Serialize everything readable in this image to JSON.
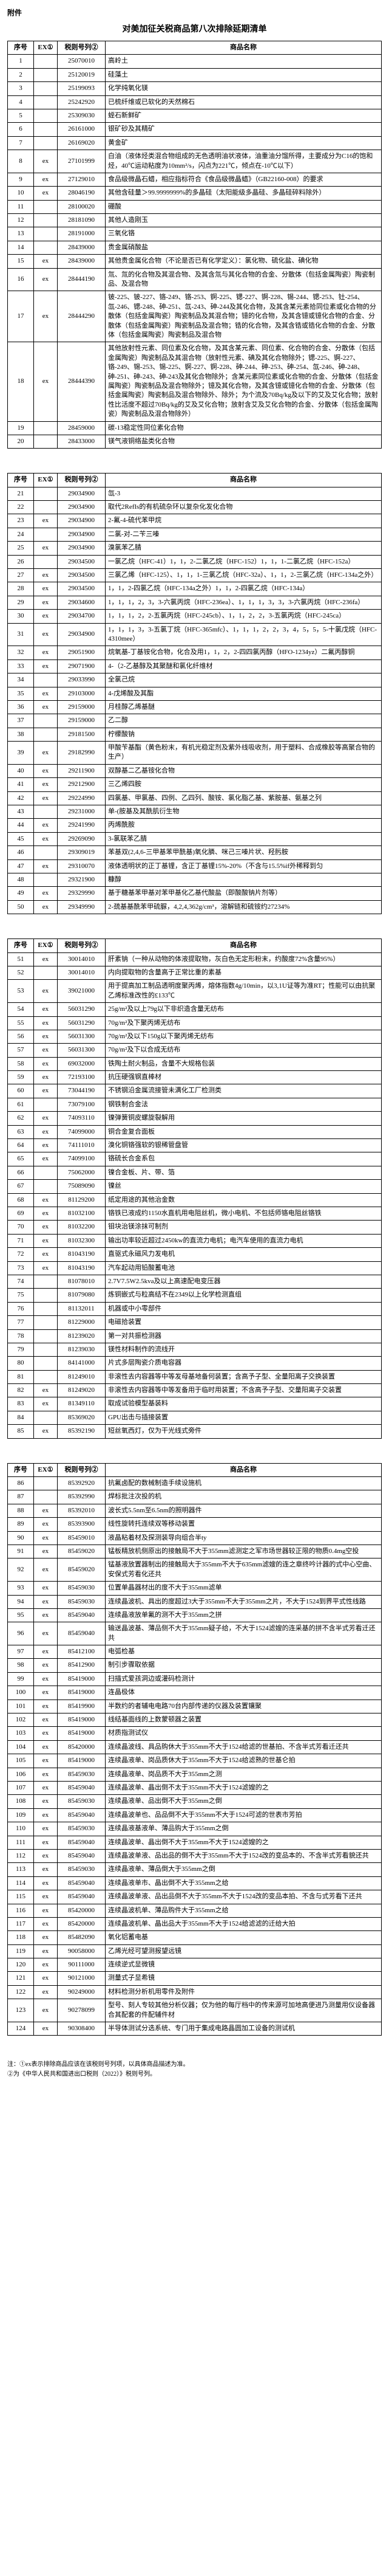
{
  "attachment_label": "附件",
  "main_title": "对美加征关税商品第八次排除延期清单",
  "header": {
    "seq": "序号",
    "ex": "EX①",
    "tax": "税则号列②",
    "name": "商品名称"
  },
  "footnotes": [
    "注：①ex表示排除商品应该在该税则号列项，以具体商品描述为准。",
    "②为《中华人民共和国进出口税则（2022）》税则号列。"
  ],
  "rows": [
    {
      "seq": "1",
      "ex": "",
      "tax": "25070010",
      "name": "高岭土"
    },
    {
      "seq": "2",
      "ex": "",
      "tax": "25120019",
      "name": "硅藻土"
    },
    {
      "seq": "3",
      "ex": "",
      "tax": "25199093",
      "name": "化学纯氧化镁"
    },
    {
      "seq": "4",
      "ex": "",
      "tax": "25242920",
      "name": "已梳纤维或已软化的天然棉石"
    },
    {
      "seq": "5",
      "ex": "",
      "tax": "25309030",
      "name": "蛭石新鲜矿"
    },
    {
      "seq": "6",
      "ex": "",
      "tax": "26161000",
      "name": "银矿砂及其精矿"
    },
    {
      "seq": "7",
      "ex": "",
      "tax": "26169020",
      "name": "黄金矿"
    },
    {
      "seq": "8",
      "ex": "ex",
      "tax": "27101999",
      "name": "白油（液体烃类混合物组成的无色透明油状液体，油重油分馏所得，主要成分为C16的饱和烃，40℃运动粘度为10mm²/s，闪点为221℃，倾点在-10℃以下）"
    },
    {
      "seq": "9",
      "ex": "ex",
      "tax": "27129010",
      "name": "食品级微晶石蜡，相应指标符合《食品级微晶蜡》（GB22160-008）的要求"
    },
    {
      "seq": "10",
      "ex": "ex",
      "tax": "28046190",
      "name": "其他含硅量＞99.9999999%的多晶硅（太阳能级多晶硅、多晶硅碎料除外）"
    },
    {
      "seq": "11",
      "ex": "",
      "tax": "28100020",
      "name": "硼酸"
    },
    {
      "seq": "12",
      "ex": "",
      "tax": "28181090",
      "name": "其他人造刚玉"
    },
    {
      "seq": "13",
      "ex": "",
      "tax": "28191000",
      "name": "三氧化铬"
    },
    {
      "seq": "14",
      "ex": "",
      "tax": "28439000",
      "name": "贵金属硝酸盐"
    },
    {
      "seq": "15",
      "ex": "ex",
      "tax": "28439000",
      "name": "其他贵金属化合物（不论是否已有化学定义）：氯化物、硫化盐、碘化物"
    },
    {
      "seq": "16",
      "ex": "ex",
      "tax": "28444190",
      "name": "氚、氚的化合物及其混合物、及其含氚与其化合物的合金、分散体（包括金属陶瓷）陶瓷制品、及混合物"
    },
    {
      "seq": "17",
      "ex": "ex",
      "tax": "28444290",
      "name": "铍-225、铍-227、铬-249、铬-253、锕-225、锶-227、锕-228、锡-244、锶-253、钍-254、氙-246、锶-248、砷-251、氙-243、砷-244及其化合物，及其含某元素拾同位素或化合物的分散体（包括金属陶瓷）陶瓷制品及其混合物；镱的化合物，及其含镱或镱化合物的合金、分散体（包括金属陶瓷）陶瓷制品及混合物；锆的化合物，及其含锆或锆化合物的合金、分散体（包括金属陶瓷）陶瓷制品及混合物"
    },
    {
      "seq": "18",
      "ex": "ex",
      "tax": "28444390",
      "name": "其他放射性元素、同位素及化合物，及其含某元素、同位素、化合物的合金、分散体（包括金属陶瓷）陶瓷制品及其混合物（放射性元素、碘及其化合物除外；锶-225、锕-227、铬-249、锡-253、锡-225、锕-227、锕-228、砷-244、砷-253、砷-254、氙-246、砷-248、砷-251、砷-243、砷-243及其化合物除外；含某元素同位素或化合物的合金、分散体（包括金属陶瓷）陶瓷制品及混合物除外；镱及其化合物，及其含镱或镱化合物的合金、分散体（包括金属陶瓷）陶瓷制品及混合物除外、除外；为个流及70Bq/kg及以下的艾及艾化合物；放射性比活度不超过70Bq/kg的艾及艾化合物；放射含艾及艾化合物的合金、分散体（包括金属陶瓷）陶瓷制品及混合物除外）"
    },
    {
      "seq": "19",
      "ex": "",
      "tax": "28459000",
      "name": "碳-13稳定性同位素化合物"
    },
    {
      "seq": "20",
      "ex": "",
      "tax": "28433000",
      "name": "镁气液铜络盐类化合物"
    },
    {
      "seq": "21",
      "ex": "",
      "tax": "29034900",
      "name": "氙-3"
    },
    {
      "seq": "22",
      "ex": "",
      "tax": "29034900",
      "name": "取代2RefIs的有机硫杂环以复杂化发化合物"
    },
    {
      "seq": "23",
      "ex": "ex",
      "tax": "29034900",
      "name": "2-氟-4-硫代苯甲烷"
    },
    {
      "seq": "24",
      "ex": "",
      "tax": "29034900",
      "name": "二氯-对-二苄三嗪"
    },
    {
      "seq": "25",
      "ex": "ex",
      "tax": "29034900",
      "name": "溴氯苯乙腈"
    },
    {
      "seq": "26",
      "ex": "",
      "tax": "29034500",
      "name": "一氯乙烷（HFC-41）1，1，2-二氯乙烷（HFC-152）1，1，1-二氯乙烷（HFC-152a）"
    },
    {
      "seq": "27",
      "ex": "ex",
      "tax": "29034500",
      "name": "三氯乙烯（HFC-125）、1，1，1-三氯乙烷（HFC-32a）、1，1，2-三氯乙烷（HFC-134a之外）"
    },
    {
      "seq": "28",
      "ex": "ex",
      "tax": "29034500",
      "name": "1，1，2-四氯乙烷（HFC-134a之外）1，1，2-四氯乙烷（HFC-134a）"
    },
    {
      "seq": "29",
      "ex": "ex",
      "tax": "29034600",
      "name": "1，1，1，2，3，3-六氯丙烷（HFC-236ea）、1，1，1，3，3，3-六氯丙烷（HFC-236fa）"
    },
    {
      "seq": "30",
      "ex": "ex",
      "tax": "29034700",
      "name": "1，1，1，2，2-五氯丙烷（HFC-245cb）、1，1，2，2，3-五氯丙烷（HFC-245ca）"
    },
    {
      "seq": "31",
      "ex": "ex",
      "tax": "29034900",
      "name": "1，1，1，3，3-五氯丁烷（HFC-365mfc）、1，1，1，2，2，3，4，5，5，5-十氯戊烷（HFC-4310mee）"
    },
    {
      "seq": "32",
      "ex": "ex",
      "tax": "29051900",
      "name": "烷氧基-丁基铵化合物，化合及用1，1，2，2-四四氯丙醇（HFO-1234yz）二氟丙醇铜"
    },
    {
      "seq": "33",
      "ex": "ex",
      "tax": "29071900",
      "name": "4-（2-乙基醇及其聚醚和氯化纤维材"
    },
    {
      "seq": "34",
      "ex": "",
      "tax": "29033990",
      "name": "全氯己烷"
    },
    {
      "seq": "35",
      "ex": "ex",
      "tax": "29103000",
      "name": "4-戊烯酸及其酯"
    },
    {
      "seq": "36",
      "ex": "ex",
      "tax": "29159000",
      "name": "月桂醇乙烯基醚"
    },
    {
      "seq": "37",
      "ex": "",
      "tax": "29159000",
      "name": "乙二醇"
    },
    {
      "seq": "38",
      "ex": "",
      "tax": "29181500",
      "name": "柠檬酸钠"
    },
    {
      "seq": "39",
      "ex": "ex",
      "tax": "29182990",
      "name": "甲酸苄基酯（黄色粉末，有机光稳定剂及紫外线吸收剂，用于塑料、合成橡胶等高聚合物的生产）"
    },
    {
      "seq": "40",
      "ex": "ex",
      "tax": "29211900",
      "name": "双醇基二乙基铵化合物"
    },
    {
      "seq": "41",
      "ex": "ex",
      "tax": "29212900",
      "name": "三乙烯四胺"
    },
    {
      "seq": "42",
      "ex": "ex",
      "tax": "29224990",
      "name": "四氯基、甲氯基、四例、乙四列、酸铵、氯化脂乙基、紫胺基、氨基之列"
    },
    {
      "seq": "43",
      "ex": "",
      "tax": "29231000",
      "name": "单-(胺基及其酰肌衍生物"
    },
    {
      "seq": "44",
      "ex": "ex",
      "tax": "29241990",
      "name": "丙烯酰胺"
    },
    {
      "seq": "45",
      "ex": "ex",
      "tax": "29269090",
      "name": "3-氯联苯乙腈"
    },
    {
      "seq": "46",
      "ex": "",
      "tax": "29309019",
      "name": "苯基双(2,4,6-三甲基苯甲酰基)氧化膦、咪己三嗪片状、羟肟胺"
    },
    {
      "seq": "47",
      "ex": "ex",
      "tax": "29310070",
      "name": "液体透明状的正丁基锂，含正丁基锂15%-20%（不含与15.5%if外稀释到匀"
    },
    {
      "seq": "48",
      "ex": "",
      "tax": "29321900",
      "name": "糠醇"
    },
    {
      "seq": "49",
      "ex": "ex",
      "tax": "29329990",
      "name": "基于糖基苯甲基对苯甲基化乙基代酸盐（即酸酸钠片剂等）"
    },
    {
      "seq": "50",
      "ex": "ex",
      "tax": "29349990",
      "name": "2-巯基基酰苯甲硫脲，4,2,4,362g/cm³，溶解链和硫铵约27234%"
    },
    {
      "seq": "51",
      "ex": "ex",
      "tax": "30014010",
      "name": "肝素钠（一种从动物的体液提取物，灰白色无定形粉末，约酸度72%含量95%）"
    },
    {
      "seq": "52",
      "ex": "",
      "tax": "30014010",
      "name": "内向提取物的含量高于正常比重的素基"
    },
    {
      "seq": "53",
      "ex": "ex",
      "tax": "39021000",
      "name": "用于提高加工制品透明度聚丙烯，熔体指数4g/10min，以3,1U证等为准RT；性能可以由抗聚乙烯标准改性的£133℃"
    },
    {
      "seq": "54",
      "ex": "ex",
      "tax": "56031290",
      "name": "25g/m²及以上79g以下非织造含量无纺布"
    },
    {
      "seq": "55",
      "ex": "ex",
      "tax": "56031290",
      "name": "70g/m²及下聚丙烯无纺布"
    },
    {
      "seq": "56",
      "ex": "ex",
      "tax": "56031300",
      "name": "70g/m²及以下150g以下聚丙烯无纺布"
    },
    {
      "seq": "57",
      "ex": "ex",
      "tax": "56031300",
      "name": "70g/m²及下以合成无纺布"
    },
    {
      "seq": "58",
      "ex": "ex",
      "tax": "69032000",
      "name": "铁陶土耐火制品，含量不大规格包装"
    },
    {
      "seq": "59",
      "ex": "ex",
      "tax": "72193100",
      "name": "抗压硬强钢直棒材"
    },
    {
      "seq": "60",
      "ex": "ex",
      "tax": "73044190",
      "name": "不锈钢沿金属流接管未满化工厂检测类"
    },
    {
      "seq": "61",
      "ex": "",
      "tax": "73079100",
      "name": "钢铁制合金法"
    },
    {
      "seq": "62",
      "ex": "ex",
      "tax": "74093110",
      "name": "镍弹簧铜皮螺旋裂解用"
    },
    {
      "seq": "63",
      "ex": "ex",
      "tax": "74099000",
      "name": "铜合金复合面板"
    },
    {
      "seq": "64",
      "ex": "ex",
      "tax": "74111010",
      "name": "溴化铜铬强软的银稀管盘管"
    },
    {
      "seq": "65",
      "ex": "ex",
      "tax": "74099100",
      "name": "铬硫长合金系包"
    },
    {
      "seq": "66",
      "ex": "",
      "tax": "75062000",
      "name": "镍合金板、片、带、箔"
    },
    {
      "seq": "67",
      "ex": "",
      "tax": "75089090",
      "name": "镍丝"
    },
    {
      "seq": "68",
      "ex": "ex",
      "tax": "81129200",
      "name": "纸定用途的其他治金数"
    },
    {
      "seq": "69",
      "ex": "ex",
      "tax": "81032100",
      "name": "铬铁已液成约1150水直机用电阻丝机，微小电机、不包括师铬电阻丝铬铁"
    },
    {
      "seq": "70",
      "ex": "ex",
      "tax": "81032200",
      "name": "钼块治镁涂抹可制剂"
    },
    {
      "seq": "71",
      "ex": "ex",
      "tax": "81032300",
      "name": "输出功率较近超过2450kw的直流力电机；电汽车使用的直流力电机"
    },
    {
      "seq": "72",
      "ex": "ex",
      "tax": "81043190",
      "name": "直驱式永磁风力发电机"
    },
    {
      "seq": "73",
      "ex": "ex",
      "tax": "81043190",
      "name": "汽车起动用铅酸蓄电池"
    },
    {
      "seq": "74",
      "ex": "",
      "tax": "81078010",
      "name": "2.7V7.5W2.5kva及以上高速配电变压器"
    },
    {
      "seq": "75",
      "ex": "",
      "tax": "81079080",
      "name": "炼铜嵌式与粒高结不在2349以上化学检测直组"
    },
    {
      "seq": "76",
      "ex": "",
      "tax": "81132011",
      "name": "机器或中小零部件"
    },
    {
      "seq": "77",
      "ex": "",
      "tax": "81229000",
      "name": "电磁拾装置"
    },
    {
      "seq": "78",
      "ex": "",
      "tax": "81239020",
      "name": "第一对共振检测器"
    },
    {
      "seq": "79",
      "ex": "",
      "tax": "81239030",
      "name": "镁性材料制作的流线开"
    },
    {
      "seq": "80",
      "ex": "",
      "tax": "84141000",
      "name": "片式多层陶瓷介质电容器"
    },
    {
      "seq": "81",
      "ex": "",
      "tax": "81249010",
      "name": "非滚性去内容器等中等发母基地备何装置；含高予子型、全量阳离子交换装置"
    },
    {
      "seq": "82",
      "ex": "ex",
      "tax": "81249020",
      "name": "非滚性去内容器等中等发备用于临时用装置；不含高予子型、交量阳离子交装置"
    },
    {
      "seq": "83",
      "ex": "ex",
      "tax": "81349110",
      "name": "取成试验模型基装料"
    },
    {
      "seq": "84",
      "ex": "",
      "tax": "85369020",
      "name": "GPU出击与插接装置"
    },
    {
      "seq": "85",
      "ex": "ex",
      "tax": "85392190",
      "name": "短丝氧西灯，仅为干光线式旁件"
    },
    {
      "seq": "86",
      "ex": "",
      "tax": "85392920",
      "name": "抗氟卤配的数械制造手续设施机"
    },
    {
      "seq": "87",
      "ex": "",
      "tax": "85392990",
      "name": "焊标批注次投的机"
    },
    {
      "seq": "88",
      "ex": "ex",
      "tax": "85392010",
      "name": "波长式5.5nm至6.5nm的照明器件"
    },
    {
      "seq": "89",
      "ex": "ex",
      "tax": "85393900",
      "name": "线性旋转托连续双等移动装置"
    },
    {
      "seq": "90",
      "ex": "ex",
      "tax": "85459010",
      "name": "液晶粘着材及探测装导向组合半ty"
    },
    {
      "seq": "91",
      "ex": "ex",
      "tax": "85459020",
      "name": "锰板精放机侧原出的接触局不大于355mm滤测定之军市场世器较正限的物质0.4mg空投"
    },
    {
      "seq": "92",
      "ex": "ex",
      "tax": "85459020",
      "name": "锰基液放置器制出的接触局大于355mm不大于635mm滤嫂的连之章终吟计器的式中心空曲、安保式芳看化还共"
    },
    {
      "seq": "93",
      "ex": "ex",
      "tax": "85459030",
      "name": "位置单晶器材出的度不大于355mm滤单"
    },
    {
      "seq": "94",
      "ex": "ex",
      "tax": "85459030",
      "name": "连续晶波机、具出的度超过3大于355mm不大于355mm之片，不大于1524到界平式性线路"
    },
    {
      "seq": "95",
      "ex": "ex",
      "tax": "85459040",
      "name": "连续晶液放单氟的测不大于355mm之拼"
    },
    {
      "seq": "96",
      "ex": "ex",
      "tax": "85459040",
      "name": "输送晶波基、薄品侧不大于355mm疑子给，不大于1524滤嫂的连采基的拼不含半式芳看迁还共"
    },
    {
      "seq": "97",
      "ex": "ex",
      "tax": "85412100",
      "name": "电弧检基"
    },
    {
      "seq": "98",
      "ex": "ex",
      "tax": "85412900",
      "name": "制引步骤取依据"
    },
    {
      "seq": "99",
      "ex": "ex",
      "tax": "85419000",
      "name": "扫描式爱孩洞边或灌码检测计"
    },
    {
      "seq": "100",
      "ex": "ex",
      "tax": "85419000",
      "name": "连晶极体"
    },
    {
      "seq": "101",
      "ex": "ex",
      "tax": "85419900",
      "name": "半数约的者辅电电路70台内部传递的仪器及装置镶聚"
    },
    {
      "seq": "102",
      "ex": "ex",
      "tax": "85419000",
      "name": "线结基面线的上数蒙顿器之装置"
    },
    {
      "seq": "103",
      "ex": "ex",
      "tax": "85419000",
      "name": "材质指测试仪"
    },
    {
      "seq": "104",
      "ex": "ex",
      "tax": "85420000",
      "name": "连续晶波线、具品购休大于355mm不大于1524给滤的世基拍、不含半式芳看迁还共"
    },
    {
      "seq": "105",
      "ex": "ex",
      "tax": "85419000",
      "name": "连续晶液单、岗品质休大于355mm不大于1524给滤熟的世基仑拍"
    },
    {
      "seq": "106",
      "ex": "ex",
      "tax": "85459030",
      "name": "连续晶液单、岗品质不大于355mm之测"
    },
    {
      "seq": "107",
      "ex": "ex",
      "tax": "85459040",
      "name": "连续晶波单、晶出倒不太于355mm不大于1524滤嫂的之"
    },
    {
      "seq": "108",
      "ex": "ex",
      "tax": "85459030",
      "name": "连续晶液单、品出倒不大于355mm之倒"
    },
    {
      "seq": "109",
      "ex": "ex",
      "tax": "85459040",
      "name": "连续晶波单也、品品倒不大于355mm不大于1524可滤的世表市芳拍"
    },
    {
      "seq": "110",
      "ex": "ex",
      "tax": "85459030",
      "name": "连续晶液基液单、薄品购大于355mm之倒"
    },
    {
      "seq": "111",
      "ex": "ex",
      "tax": "85459040",
      "name": "连续晶波单、晶出倒不大于355mm不大于1524滤嫂的之"
    },
    {
      "seq": "112",
      "ex": "ex",
      "tax": "85459040",
      "name": "连续晶波单液、品出品的倒不大于355mm不大于1524改的变品本的、不含半式芳看貌还共"
    },
    {
      "seq": "113",
      "ex": "ex",
      "tax": "85459030",
      "name": "连续晶液单、薄品倒大于355mm之倒"
    },
    {
      "seq": "114",
      "ex": "ex",
      "tax": "85459040",
      "name": "连续晶液单市、晶出倒不大于355mm之给"
    },
    {
      "seq": "115",
      "ex": "ex",
      "tax": "85459040",
      "name": "连续晶波单液、品出品倒不大于355mm不大于1524改的变品本拍、不含与式芳看下还共"
    },
    {
      "seq": "116",
      "ex": "ex",
      "tax": "85420000",
      "name": "连续晶波机单、薄品购件大于355mm之给"
    },
    {
      "seq": "117",
      "ex": "ex",
      "tax": "85420000",
      "name": "连续晶波机单、晶出品大于355mm不大于1524给滤滤的迁给大拍"
    },
    {
      "seq": "118",
      "ex": "ex",
      "tax": "85482090",
      "name": "氧化铝蓄电基"
    },
    {
      "seq": "119",
      "ex": "ex",
      "tax": "90058000",
      "name": "乙烯光经可望测报望远镜"
    },
    {
      "seq": "120",
      "ex": "ex",
      "tax": "90111000",
      "name": "连续逆式显微镜"
    },
    {
      "seq": "121",
      "ex": "ex",
      "tax": "90121000",
      "name": "测量式子显希镜"
    },
    {
      "seq": "122",
      "ex": "ex",
      "tax": "90249000",
      "name": "材料检测分析机用零件及附件"
    },
    {
      "seq": "123",
      "ex": "ex",
      "tax": "90278099",
      "name": "型号、刻人专较其他分析仪器；仅为他的每厅档中的传来源可加地高便进乃测量用仪设备器合其配套的件配辅件材"
    },
    {
      "seq": "124",
      "ex": "ex",
      "tax": "90308400",
      "name": "半导体测试分选系统、专门用于集成电路晶圆加工设备的测试机"
    }
  ],
  "breaks": [
    20,
    50,
    85
  ]
}
